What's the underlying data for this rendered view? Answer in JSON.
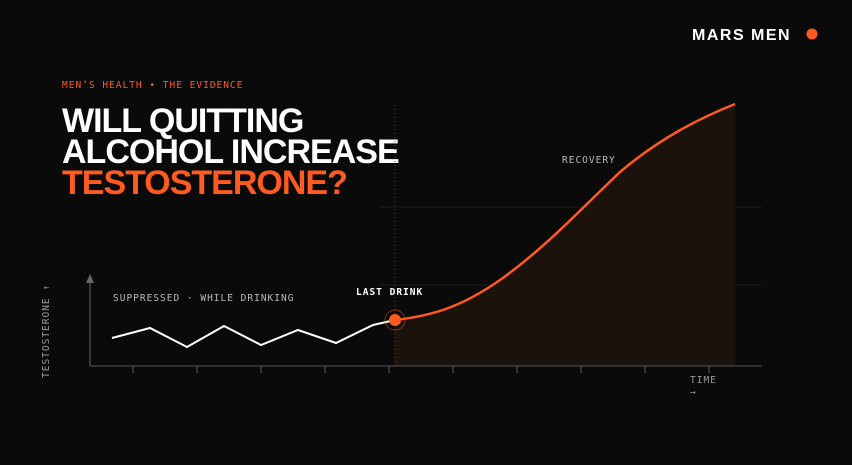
{
  "logo": {
    "text": "MARS MEN"
  },
  "eyebrow": "MEN’S HEALTH • THE EVIDENCE",
  "title": {
    "lines": [
      "WILL QUITTING",
      "ALCOHOL INCREASE"
    ],
    "highlight": "TESTOSTERONE?"
  },
  "illustration": {
    "recovery_label": "RECOVERY",
    "suppressed_label": "SUPPRESSED · WHILE DRINKING",
    "event_label": "LAST DRINK",
    "y_axis_label": "TESTOSTERONE ↑",
    "x_axis_label": [
      "TIME",
      "→"
    ]
  }
}
